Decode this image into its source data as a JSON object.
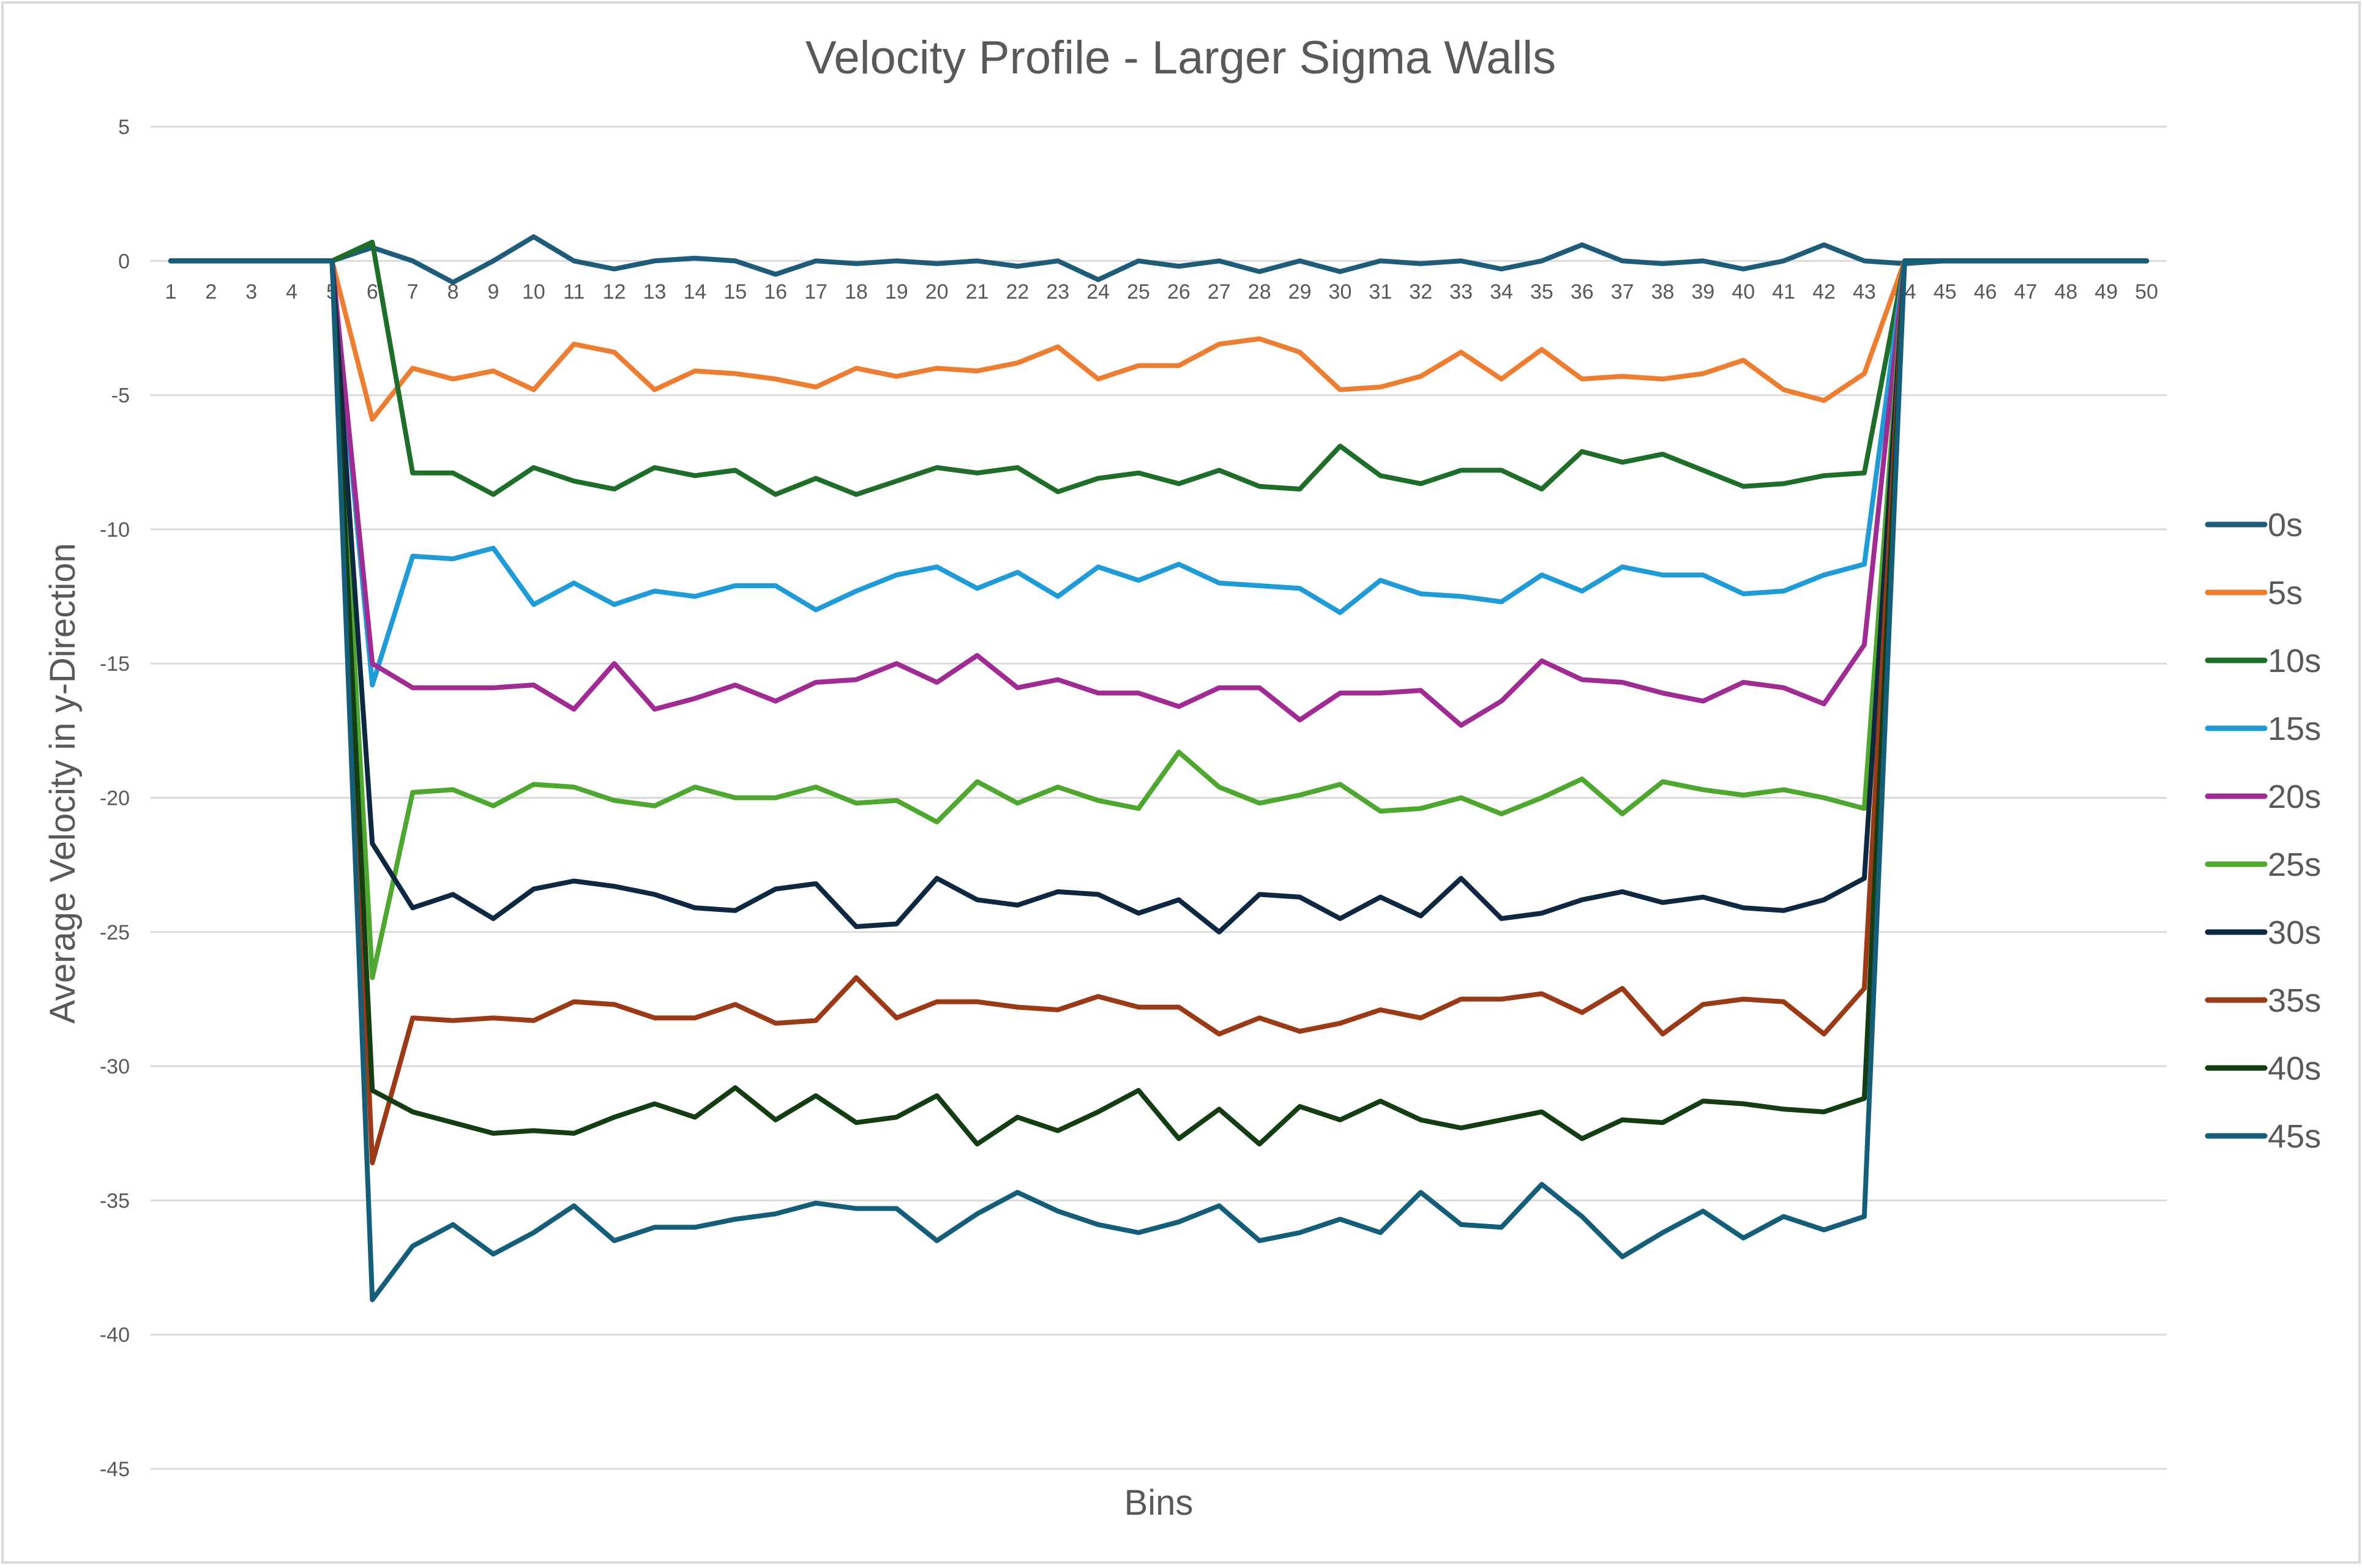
{
  "chart_data": {
    "type": "line",
    "title": "Velocity Profile - Larger Sigma Walls",
    "xlabel": "Bins",
    "ylabel": "Average Velocity in y-Direction",
    "ylim": [
      -45,
      5
    ],
    "yticks": [
      5,
      0,
      -5,
      -10,
      -15,
      -20,
      -25,
      -30,
      -35,
      -40,
      -45
    ],
    "grid": true,
    "legend_position": "right",
    "x": [
      1,
      2,
      3,
      4,
      5,
      6,
      7,
      8,
      9,
      10,
      11,
      12,
      13,
      14,
      15,
      16,
      17,
      18,
      19,
      20,
      21,
      22,
      23,
      24,
      25,
      26,
      27,
      28,
      29,
      30,
      31,
      32,
      33,
      34,
      35,
      36,
      37,
      38,
      39,
      40,
      41,
      42,
      43,
      44,
      45,
      46,
      47,
      48,
      49,
      50
    ],
    "series": [
      {
        "name": "0s",
        "color": "#1f5c7a",
        "values": [
          0,
          0,
          0,
          0,
          0,
          0.5,
          0,
          -0.8,
          0,
          0.9,
          0,
          -0.3,
          0,
          0.1,
          0,
          -0.5,
          0,
          -0.1,
          0,
          -0.1,
          0,
          -0.2,
          0,
          -0.7,
          0,
          -0.2,
          0,
          -0.4,
          0,
          -0.4,
          0,
          -0.1,
          0,
          -0.3,
          0,
          0.6,
          0,
          -0.1,
          0,
          -0.3,
          0,
          0.6,
          0,
          -0.1,
          0,
          0,
          0,
          0,
          0,
          0
        ]
      },
      {
        "name": "5s",
        "color": "#ed7d31",
        "values": [
          0,
          0,
          0,
          0,
          0,
          -5.9,
          -4.0,
          -4.4,
          -4.1,
          -4.8,
          -3.1,
          -3.4,
          -4.8,
          -4.1,
          -4.2,
          -4.4,
          -4.7,
          -4.0,
          -4.3,
          -4.0,
          -4.1,
          -3.8,
          -3.2,
          -4.4,
          -3.9,
          -3.9,
          -3.1,
          -2.9,
          -3.4,
          -4.8,
          -4.7,
          -4.3,
          -3.4,
          -4.4,
          -3.3,
          -4.4,
          -4.3,
          -4.4,
          -4.2,
          -3.7,
          -4.8,
          -5.2,
          -4.2,
          0,
          0,
          0,
          0,
          0,
          0,
          0
        ]
      },
      {
        "name": "10s",
        "color": "#1e6e2a",
        "values": [
          0,
          0,
          0,
          0,
          0,
          0.7,
          -7.9,
          -7.9,
          -8.7,
          -7.7,
          -8.2,
          -8.5,
          -7.7,
          -8.0,
          -7.8,
          -8.7,
          -8.1,
          -8.7,
          -8.2,
          -7.7,
          -7.9,
          -7.7,
          -8.6,
          -8.1,
          -7.9,
          -8.3,
          -7.8,
          -8.4,
          -8.5,
          -6.9,
          -8.0,
          -8.3,
          -7.8,
          -7.8,
          -8.5,
          -7.1,
          -7.5,
          -7.2,
          -7.8,
          -8.4,
          -8.3,
          -8.0,
          -7.9,
          0,
          0,
          0,
          0,
          0,
          0,
          0
        ]
      },
      {
        "name": "15s",
        "color": "#1f9bd7",
        "values": [
          0,
          0,
          0,
          0,
          0,
          -15.8,
          -11.0,
          -11.1,
          -10.7,
          -12.8,
          -12.0,
          -12.8,
          -12.3,
          -12.5,
          -12.1,
          -12.1,
          -13.0,
          -12.3,
          -11.7,
          -11.4,
          -12.2,
          -11.6,
          -12.5,
          -11.4,
          -11.9,
          -11.3,
          -12.0,
          -12.1,
          -12.2,
          -13.1,
          -11.9,
          -12.4,
          -12.5,
          -12.7,
          -11.7,
          -12.3,
          -11.4,
          -11.7,
          -11.7,
          -12.4,
          -12.3,
          -11.7,
          -11.3,
          0,
          0,
          0,
          0,
          0,
          0,
          0
        ]
      },
      {
        "name": "20s",
        "color": "#a02b93",
        "values": [
          0,
          0,
          0,
          0,
          0,
          -15.0,
          -15.9,
          -15.9,
          -15.9,
          -15.8,
          -16.7,
          -15.0,
          -16.7,
          -16.3,
          -15.8,
          -16.4,
          -15.7,
          -15.6,
          -15.0,
          -15.7,
          -14.7,
          -15.9,
          -15.6,
          -16.1,
          -16.1,
          -16.6,
          -15.9,
          -15.9,
          -17.1,
          -16.1,
          -16.1,
          -16.0,
          -17.3,
          -16.4,
          -14.9,
          -15.6,
          -15.7,
          -16.1,
          -16.4,
          -15.7,
          -15.9,
          -16.5,
          -14.3,
          0,
          0,
          0,
          0,
          0,
          0,
          0
        ]
      },
      {
        "name": "25s",
        "color": "#4ea72e",
        "values": [
          0,
          0,
          0,
          0,
          0,
          -26.7,
          -19.8,
          -19.7,
          -20.3,
          -19.5,
          -19.6,
          -20.1,
          -20.3,
          -19.6,
          -20.0,
          -20.0,
          -19.6,
          -20.2,
          -20.1,
          -20.9,
          -19.4,
          -20.2,
          -19.6,
          -20.1,
          -20.4,
          -18.3,
          -19.6,
          -20.2,
          -19.9,
          -19.5,
          -20.5,
          -20.4,
          -20.0,
          -20.6,
          -20.0,
          -19.3,
          -20.6,
          -19.4,
          -19.7,
          -19.9,
          -19.7,
          -20.0,
          -20.4,
          0,
          0,
          0,
          0,
          0,
          0,
          0
        ]
      },
      {
        "name": "30s",
        "color": "#0e2841",
        "values": [
          0,
          0,
          0,
          0,
          0,
          -21.7,
          -24.1,
          -23.6,
          -24.5,
          -23.4,
          -23.1,
          -23.3,
          -23.6,
          -24.1,
          -24.2,
          -23.4,
          -23.2,
          -24.8,
          -24.7,
          -23.0,
          -23.8,
          -24.0,
          -23.5,
          -23.6,
          -24.3,
          -23.8,
          -25.0,
          -23.6,
          -23.7,
          -24.5,
          -23.7,
          -24.4,
          -23.0,
          -24.5,
          -24.3,
          -23.8,
          -23.5,
          -23.9,
          -23.7,
          -24.1,
          -24.2,
          -23.8,
          -23.0,
          0,
          0,
          0,
          0,
          0,
          0,
          0
        ]
      },
      {
        "name": "35s",
        "color": "#9a3a16",
        "values": [
          0,
          0,
          0,
          0,
          0,
          -33.6,
          -28.2,
          -28.3,
          -28.2,
          -28.3,
          -27.6,
          -27.7,
          -28.2,
          -28.2,
          -27.7,
          -28.4,
          -28.3,
          -26.7,
          -28.2,
          -27.6,
          -27.6,
          -27.8,
          -27.9,
          -27.4,
          -27.8,
          -27.8,
          -28.8,
          -28.2,
          -28.7,
          -28.4,
          -27.9,
          -28.2,
          -27.5,
          -27.5,
          -27.3,
          -28.0,
          -27.1,
          -28.8,
          -27.7,
          -27.5,
          -27.6,
          -28.8,
          -27.1,
          0,
          0,
          0,
          0,
          0,
          0,
          0
        ]
      },
      {
        "name": "40s",
        "color": "#143d14",
        "values": [
          0,
          0,
          0,
          0,
          0,
          -30.9,
          -31.7,
          -32.1,
          -32.5,
          -32.4,
          -32.5,
          -31.9,
          -31.4,
          -31.9,
          -30.8,
          -32.0,
          -31.1,
          -32.1,
          -31.9,
          -31.1,
          -32.9,
          -31.9,
          -32.4,
          -31.7,
          -30.9,
          -32.7,
          -31.6,
          -32.9,
          -31.5,
          -32.0,
          -31.3,
          -32.0,
          -32.3,
          -32.0,
          -31.7,
          -32.7,
          -32.0,
          -32.1,
          -31.3,
          -31.4,
          -31.6,
          -31.7,
          -31.2,
          0,
          0,
          0,
          0,
          0,
          0,
          0
        ]
      },
      {
        "name": "45s",
        "color": "#155e7a",
        "values": [
          0,
          0,
          0,
          0,
          0,
          -38.7,
          -36.7,
          -35.9,
          -37.0,
          -36.2,
          -35.2,
          -36.5,
          -36.0,
          -36.0,
          -35.7,
          -35.5,
          -35.1,
          -35.3,
          -35.3,
          -36.5,
          -35.5,
          -34.7,
          -35.4,
          -35.9,
          -36.2,
          -35.8,
          -35.2,
          -36.5,
          -36.2,
          -35.7,
          -36.2,
          -34.7,
          -35.9,
          -36.0,
          -34.4,
          -35.6,
          -37.1,
          -36.2,
          -35.4,
          -36.4,
          -35.6,
          -36.1,
          -35.6,
          0,
          0,
          0,
          0,
          0,
          0,
          0
        ]
      }
    ]
  }
}
